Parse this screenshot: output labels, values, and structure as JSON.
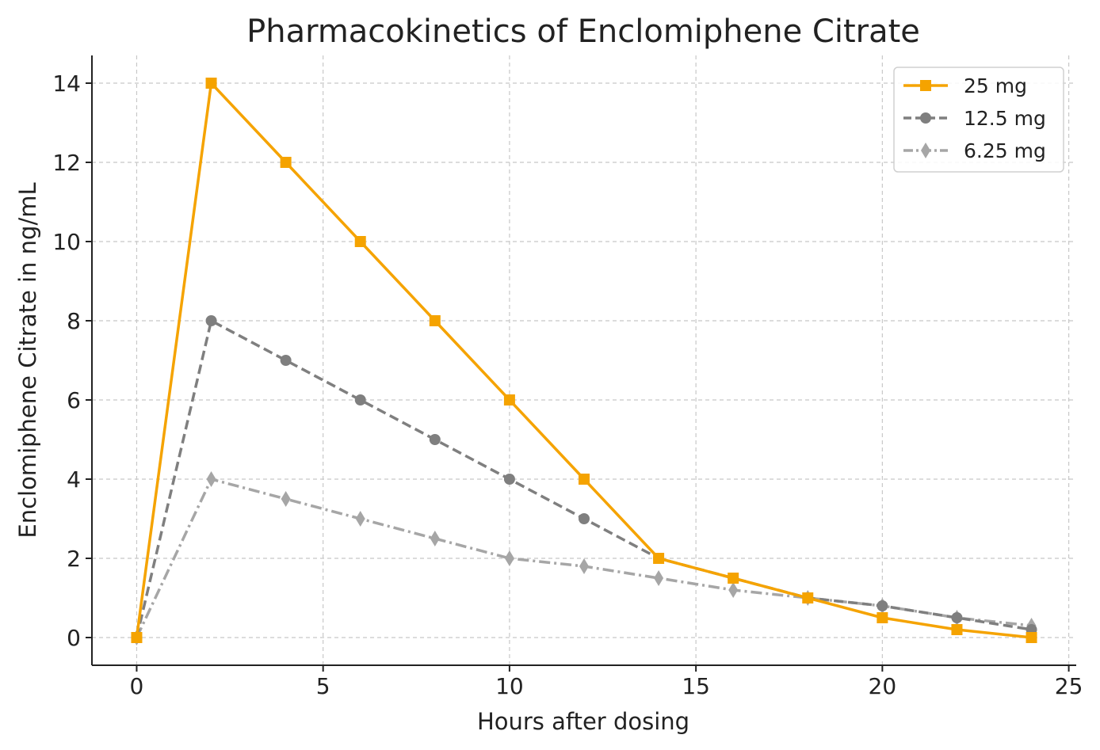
{
  "chart_data": {
    "type": "line",
    "title": "Pharmacokinetics of Enclomiphene Citrate",
    "xlabel": "Hours after dosing",
    "ylabel": "Enclomiphene Citrate in ng/mL",
    "xlim": [
      -1.2,
      25.2
    ],
    "ylim": [
      -0.7,
      14.7
    ],
    "xticks": [
      0,
      5,
      10,
      15,
      20,
      25
    ],
    "yticks": [
      0,
      2,
      4,
      6,
      8,
      10,
      12,
      14
    ],
    "grid": true,
    "legend_position": "top-right",
    "x": [
      0,
      2,
      4,
      6,
      8,
      10,
      12,
      14,
      16,
      18,
      20,
      22,
      24
    ],
    "series": [
      {
        "name": "25 mg",
        "values": [
          0,
          14,
          12,
          10,
          8,
          6,
          4,
          2,
          1.5,
          1,
          0.5,
          0.2,
          0
        ],
        "color": "#f5a300",
        "line_style": "solid",
        "marker": "square"
      },
      {
        "name": "12.5 mg",
        "values": [
          0,
          8,
          7,
          6,
          5,
          4,
          3,
          2,
          1.5,
          1,
          0.8,
          0.5,
          0.2
        ],
        "color": "#7f7f7f",
        "line_style": "dashed",
        "marker": "circle"
      },
      {
        "name": "6.25 mg",
        "values": [
          0,
          4,
          3.5,
          3,
          2.5,
          2,
          1.8,
          1.5,
          1.2,
          1,
          0.8,
          0.5,
          0.3
        ],
        "color": "#a6a6a6",
        "line_style": "dashdot",
        "marker": "thin-diamond"
      }
    ]
  }
}
